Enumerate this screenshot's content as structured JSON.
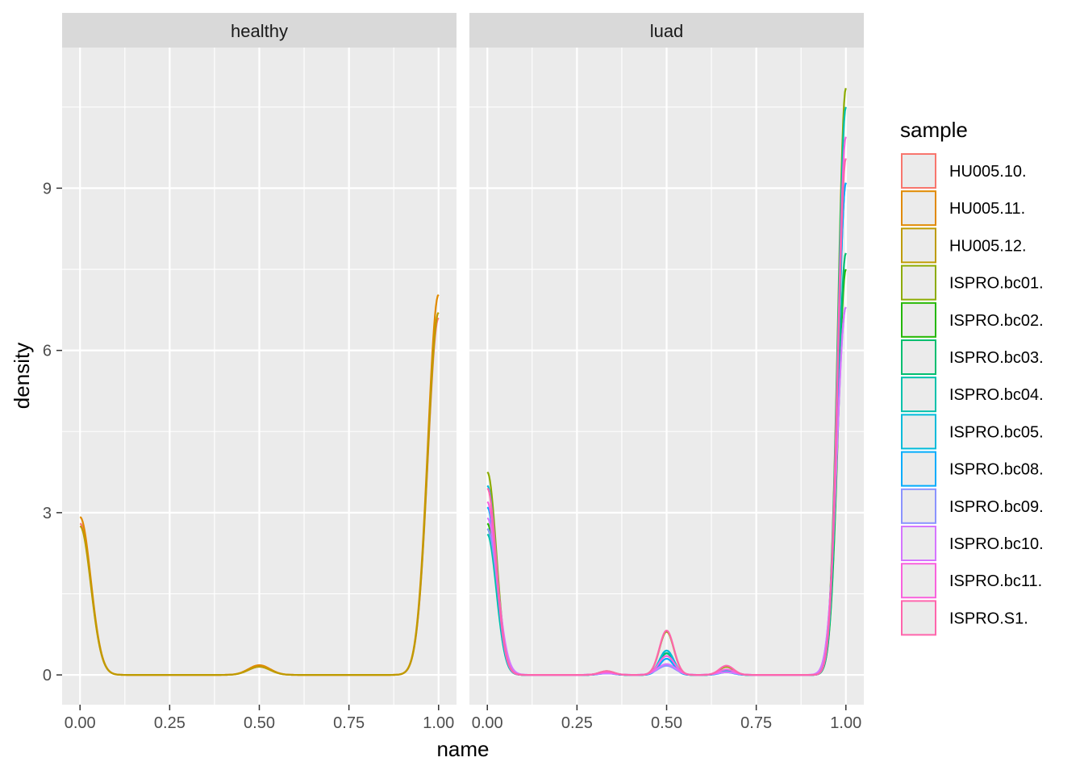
{
  "chart_data": {
    "type": "line",
    "subtype": "density",
    "xlabel": "name",
    "ylabel": "density",
    "xlim": [
      -0.05,
      1.05
    ],
    "ylim": [
      -0.55,
      11.6
    ],
    "x_ticks": [
      0,
      0.25,
      0.5,
      0.75,
      1
    ],
    "x_tick_labels": [
      "0.00",
      "0.25",
      "0.50",
      "0.75",
      "1.00"
    ],
    "y_ticks": [
      0,
      3,
      6,
      9
    ],
    "y_tick_labels": [
      "0",
      "3",
      "6",
      "9"
    ],
    "grid": true,
    "legend": {
      "title": "sample",
      "position": "right",
      "entries": [
        {
          "name": "HU005.10.",
          "color": "#F8766D"
        },
        {
          "name": "HU005.11.",
          "color": "#E18A00"
        },
        {
          "name": "HU005.12.",
          "color": "#BE9C00"
        },
        {
          "name": "ISPRO.bc01.",
          "color": "#8CAB00"
        },
        {
          "name": "ISPRO.bc02.",
          "color": "#24B700"
        },
        {
          "name": "ISPRO.bc03.",
          "color": "#00BE70"
        },
        {
          "name": "ISPRO.bc04.",
          "color": "#00C1AB"
        },
        {
          "name": "ISPRO.bc05.",
          "color": "#00BBDA"
        },
        {
          "name": "ISPRO.bc08.",
          "color": "#00ACFC"
        },
        {
          "name": "ISPRO.bc09.",
          "color": "#8B93FF"
        },
        {
          "name": "ISPRO.bc10.",
          "color": "#D575FE"
        },
        {
          "name": "ISPRO.bc11.",
          "color": "#F962DD"
        },
        {
          "name": "ISPRO.S1.",
          "color": "#FF65AC"
        }
      ]
    },
    "panels": [
      {
        "strip": "healthy",
        "series": [
          {
            "name": "HU005.10.",
            "peak0": 2.8,
            "w0": 0.03,
            "peak_mid": [
              [
                0.5,
                0.17,
                0.03
              ]
            ],
            "peak1": 6.6,
            "w1": 0.03
          },
          {
            "name": "HU005.11.",
            "peak0": 2.92,
            "w0": 0.03,
            "peak_mid": [
              [
                0.5,
                0.18,
                0.03
              ]
            ],
            "peak1": 7.03,
            "w1": 0.03
          },
          {
            "name": "HU005.12.",
            "peak0": 2.75,
            "w0": 0.03,
            "peak_mid": [
              [
                0.5,
                0.15,
                0.03
              ]
            ],
            "peak1": 6.7,
            "w1": 0.03
          }
        ]
      },
      {
        "strip": "luad",
        "series": [
          {
            "name": "ISPRO.bc01.",
            "peak0": 3.75,
            "w0": 0.025,
            "peak_mid": [
              [
                0.333,
                0.07,
                0.02
              ],
              [
                0.5,
                0.8,
                0.02
              ],
              [
                0.667,
                0.15,
                0.02
              ]
            ],
            "peak1": 10.85,
            "w1": 0.022
          },
          {
            "name": "ISPRO.bc02.",
            "peak0": 2.8,
            "w0": 0.025,
            "peak_mid": [
              [
                0.333,
                0.04,
                0.02
              ],
              [
                0.5,
                0.4,
                0.02
              ],
              [
                0.667,
                0.07,
                0.02
              ]
            ],
            "peak1": 7.5,
            "w1": 0.022
          },
          {
            "name": "ISPRO.bc03.",
            "peak0": 2.7,
            "w0": 0.025,
            "peak_mid": [
              [
                0.333,
                0.04,
                0.02
              ],
              [
                0.5,
                0.4,
                0.02
              ],
              [
                0.667,
                0.07,
                0.02
              ]
            ],
            "peak1": 7.8,
            "w1": 0.022
          },
          {
            "name": "ISPRO.bc04.",
            "peak0": 2.6,
            "w0": 0.025,
            "peak_mid": [
              [
                0.333,
                0.04,
                0.02
              ],
              [
                0.5,
                0.45,
                0.02
              ],
              [
                0.667,
                0.08,
                0.02
              ]
            ],
            "peak1": 10.5,
            "w1": 0.022
          },
          {
            "name": "ISPRO.bc05.",
            "peak0": 3.5,
            "w0": 0.025,
            "peak_mid": [
              [
                0.333,
                0.04,
                0.02
              ],
              [
                0.5,
                0.45,
                0.02
              ],
              [
                0.667,
                0.07,
                0.02
              ]
            ],
            "peak1": 9.1,
            "w1": 0.022
          },
          {
            "name": "ISPRO.bc08.",
            "peak0": 3.1,
            "w0": 0.025,
            "peak_mid": [
              [
                0.333,
                0.03,
                0.02
              ],
              [
                0.5,
                0.3,
                0.02
              ],
              [
                0.667,
                0.05,
                0.02
              ]
            ],
            "peak1": 9.1,
            "w1": 0.022
          },
          {
            "name": "ISPRO.bc09.",
            "peak0": 2.7,
            "w0": 0.028,
            "peak_mid": [
              [
                0.333,
                0.03,
                0.025
              ],
              [
                0.5,
                0.17,
                0.025
              ],
              [
                0.667,
                0.05,
                0.025
              ]
            ],
            "peak1": 6.8,
            "w1": 0.025
          },
          {
            "name": "ISPRO.bc10.",
            "peak0": 2.9,
            "w0": 0.028,
            "peak_mid": [
              [
                0.333,
                0.03,
                0.025
              ],
              [
                0.5,
                0.2,
                0.025
              ],
              [
                0.667,
                0.05,
                0.025
              ]
            ],
            "peak1": 6.8,
            "w1": 0.025
          },
          {
            "name": "ISPRO.bc11.",
            "peak0": 3.2,
            "w0": 0.025,
            "peak_mid": [
              [
                0.333,
                0.05,
                0.022
              ],
              [
                0.5,
                0.35,
                0.022
              ],
              [
                0.667,
                0.1,
                0.022
              ]
            ],
            "peak1": 9.95,
            "w1": 0.022
          },
          {
            "name": "ISPRO.S1.",
            "peak0": 3.45,
            "w0": 0.025,
            "peak_mid": [
              [
                0.333,
                0.07,
                0.02
              ],
              [
                0.5,
                0.82,
                0.02
              ],
              [
                0.667,
                0.17,
                0.02
              ]
            ],
            "peak1": 9.55,
            "w1": 0.022
          }
        ]
      }
    ]
  }
}
